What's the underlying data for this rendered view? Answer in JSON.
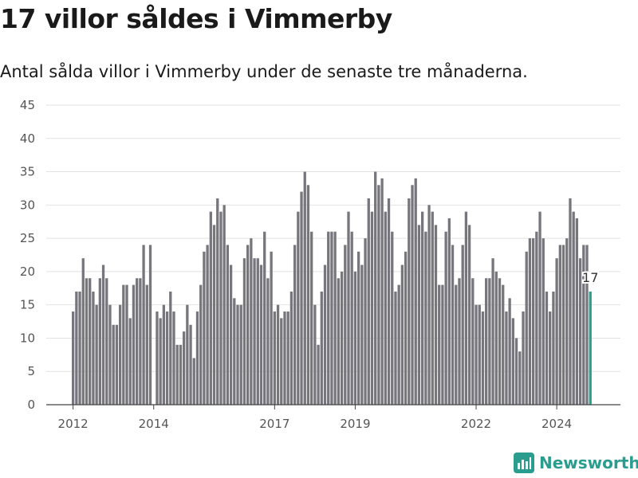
{
  "header": {
    "title": "17 villor såldes i Vimmerby",
    "subtitle": "Antal sålda villor i Vimmerby under de senaste tre månaderna."
  },
  "brand": {
    "name": "Newsworthy",
    "color": "#2a9d8f",
    "icon": "bar-chart-logo-icon"
  },
  "colors": {
    "bar": "#76767c",
    "highlight": "#2a9d8f",
    "grid": "#e2e2e2",
    "axis": "#444444"
  },
  "chart_data": {
    "type": "bar",
    "title": "17 villor såldes i Vimmerby",
    "subtitle": "Antal sålda villor i Vimmerby under de senaste tre månaderna.",
    "ylim": [
      0,
      45
    ],
    "yticks": [
      0,
      5,
      10,
      15,
      20,
      25,
      30,
      35,
      40,
      45
    ],
    "xticks": [
      "2012",
      "2014",
      "2017",
      "2019",
      "2022",
      "2024"
    ],
    "grid": "horizontal",
    "x_start": "2012-01",
    "x_end": "2024-12",
    "values": [
      14,
      17,
      17,
      22,
      19,
      19,
      17,
      15,
      19,
      21,
      19,
      15,
      12,
      12,
      15,
      18,
      18,
      13,
      18,
      19,
      19,
      24,
      18,
      24,
      null,
      14,
      13,
      15,
      14,
      17,
      14,
      9,
      9,
      11,
      15,
      12,
      7,
      14,
      18,
      23,
      24,
      29,
      27,
      31,
      29,
      30,
      24,
      21,
      16,
      15,
      15,
      22,
      24,
      25,
      22,
      22,
      21,
      26,
      19,
      23,
      14,
      15,
      13,
      14,
      14,
      17,
      24,
      29,
      32,
      35,
      33,
      26,
      15,
      9,
      17,
      21,
      26,
      26,
      26,
      19,
      20,
      24,
      29,
      26,
      20,
      23,
      21,
      25,
      31,
      29,
      35,
      33,
      34,
      29,
      31,
      26,
      17,
      18,
      21,
      23,
      31,
      33,
      34,
      27,
      29,
      26,
      30,
      29,
      27,
      18,
      18,
      26,
      28,
      24,
      18,
      19,
      24,
      29,
      27,
      19,
      15,
      15,
      14,
      19,
      19,
      22,
      20,
      19,
      18,
      14,
      16,
      13,
      10,
      8,
      14,
      23,
      25,
      25,
      26,
      29,
      25,
      17,
      14,
      17,
      22,
      24,
      24,
      25,
      31,
      29,
      28,
      22,
      24,
      24,
      17
    ],
    "highlight_last": true,
    "annotation": "17"
  }
}
